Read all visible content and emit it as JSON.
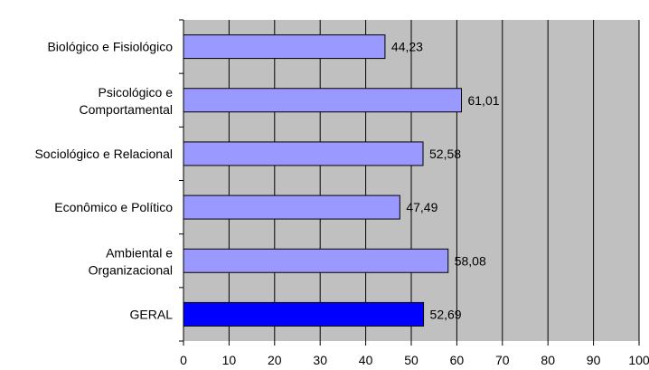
{
  "chart_data": {
    "type": "bar",
    "orientation": "horizontal",
    "categories": [
      [
        "Biológico e Fisiológico"
      ],
      [
        "Psicológico e",
        "Comportamental"
      ],
      [
        "Sociológico e Relacional"
      ],
      [
        "Econômico e Político"
      ],
      [
        "Ambiental e",
        "Organizacional"
      ],
      [
        "GERAL"
      ]
    ],
    "values": [
      44.23,
      61.01,
      52.58,
      47.49,
      58.08,
      52.69
    ],
    "value_labels": [
      "44,23",
      "61,01",
      "52,58",
      "47,49",
      "58,08",
      "52,69"
    ],
    "xlim": [
      0,
      100
    ],
    "xticks": [
      "0",
      "10",
      "20",
      "30",
      "40",
      "50",
      "60",
      "70",
      "80",
      "90",
      "100"
    ],
    "grid": true,
    "colors": {
      "plot_background": "#c0c0c0",
      "bar": "#9999ff",
      "bar_highlight": "#0000ff",
      "bar_border": "#000000",
      "gridline": "#000000"
    },
    "highlight_index": 5
  }
}
